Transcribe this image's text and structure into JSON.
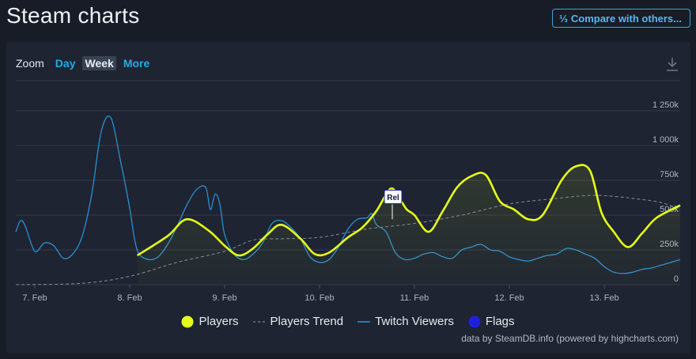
{
  "page": {
    "title": "Steam charts",
    "compare_icon": "⅓",
    "compare_label": "Compare with others..."
  },
  "toolbar": {
    "zoom_label": "Zoom",
    "zoom_options": [
      "Day",
      "Week",
      "More"
    ],
    "zoom_selected": "Week",
    "download_icon": "download-icon"
  },
  "credits": "data by SteamDB.info (powered by highcharts.com)",
  "colors": {
    "players": "#e6ff1a",
    "players_trend": "#7e8492",
    "twitch": "#2b8fd1",
    "flags": "#1f1fe0",
    "accent": "#2aa7ea"
  },
  "chart_data": {
    "type": "line",
    "x_unit": "days",
    "x_range": [
      "6 Feb 20:00",
      "13 Feb 20:00"
    ],
    "y_range": [
      0,
      1250000
    ],
    "y_ticks": [
      "0",
      "250k",
      "500k",
      "750k",
      "1 000k",
      "1 250k"
    ],
    "x_ticks": [
      "7. Feb",
      "8. Feb",
      "9. Feb",
      "10. Feb",
      "11. Feb",
      "12. Feb",
      "13. Feb"
    ],
    "grid": true,
    "legend_position": "bottom",
    "series": [
      {
        "name": "Players",
        "x": [
          8.08,
          8.4,
          8.6,
          8.83,
          9.0,
          9.15,
          9.3,
          9.45,
          9.6,
          9.8,
          9.95,
          10.1,
          10.3,
          10.45,
          10.6,
          10.75,
          10.85,
          10.92,
          11.0,
          11.15,
          11.3,
          11.45,
          11.6,
          11.75,
          11.9,
          12.05,
          12.2,
          12.35,
          12.55,
          12.7,
          12.85,
          12.97,
          13.1,
          13.25,
          13.4,
          13.55,
          13.8
        ],
        "y": [
          210000,
          350000,
          470000,
          390000,
          280000,
          210000,
          260000,
          360000,
          430000,
          330000,
          220000,
          230000,
          340000,
          410000,
          530000,
          690000,
          610000,
          540000,
          500000,
          380000,
          530000,
          700000,
          780000,
          790000,
          600000,
          540000,
          470000,
          500000,
          750000,
          850000,
          820000,
          520000,
          380000,
          270000,
          370000,
          480000,
          570000
        ]
      },
      {
        "name": "Players Trend",
        "x": [
          6.8,
          7.5,
          8.0,
          8.5,
          9.0,
          9.3,
          9.6,
          10.0,
          10.5,
          11.0,
          11.5,
          12.0,
          12.5,
          12.8,
          13.0,
          13.3,
          13.6,
          13.8
        ],
        "y": [
          0,
          10000,
          60000,
          160000,
          240000,
          320000,
          330000,
          340000,
          400000,
          440000,
          500000,
          580000,
          620000,
          640000,
          640000,
          620000,
          590000,
          540000
        ]
      },
      {
        "name": "Twitch Viewers",
        "x": [
          6.8,
          6.85,
          6.9,
          7.0,
          7.1,
          7.2,
          7.3,
          7.4,
          7.5,
          7.6,
          7.7,
          7.8,
          7.9,
          8.0,
          8.05,
          8.1,
          8.2,
          8.3,
          8.4,
          8.5,
          8.6,
          8.7,
          8.8,
          8.85,
          8.9,
          8.95,
          9.0,
          9.1,
          9.2,
          9.3,
          9.4,
          9.5,
          9.6,
          9.7,
          9.8,
          9.9,
          10.0,
          10.1,
          10.2,
          10.3,
          10.4,
          10.5,
          10.55,
          10.6,
          10.7,
          10.8,
          10.9,
          11.0,
          11.1,
          11.2,
          11.3,
          11.4,
          11.5,
          11.6,
          11.7,
          11.8,
          11.9,
          12.0,
          12.1,
          12.2,
          12.3,
          12.4,
          12.5,
          12.6,
          12.7,
          12.8,
          12.9,
          13.0,
          13.1,
          13.2,
          13.3,
          13.4,
          13.5,
          13.6,
          13.8
        ],
        "y": [
          380000,
          460000,
          420000,
          240000,
          300000,
          280000,
          190000,
          220000,
          350000,
          650000,
          1100000,
          1200000,
          900000,
          550000,
          330000,
          220000,
          180000,
          200000,
          290000,
          420000,
          570000,
          680000,
          700000,
          540000,
          650000,
          580000,
          360000,
          220000,
          180000,
          220000,
          300000,
          440000,
          460000,
          410000,
          330000,
          200000,
          160000,
          180000,
          270000,
          400000,
          470000,
          480000,
          510000,
          430000,
          380000,
          230000,
          180000,
          190000,
          220000,
          230000,
          200000,
          190000,
          250000,
          270000,
          290000,
          250000,
          240000,
          200000,
          180000,
          170000,
          190000,
          210000,
          220000,
          260000,
          250000,
          220000,
          190000,
          130000,
          90000,
          80000,
          90000,
          110000,
          120000,
          140000,
          180000
        ]
      },
      {
        "name": "Flags",
        "x": [],
        "y": []
      }
    ],
    "flag_labels": [
      "Rel"
    ]
  }
}
